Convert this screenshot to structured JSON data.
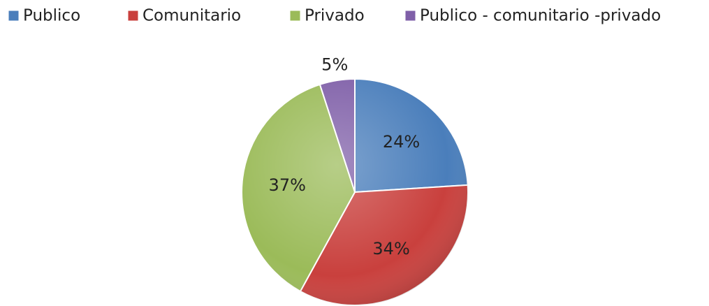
{
  "chart_data": {
    "type": "pie",
    "categories": [
      "Publico",
      "Comunitario",
      "Privado",
      "Publico - comunitario -privado"
    ],
    "values": [
      24,
      34,
      37,
      5
    ],
    "value_labels": [
      "24%",
      "34%",
      "37%",
      "5%"
    ],
    "colors": [
      "#4a7ebb",
      "#c9403d",
      "#9bbb59",
      "#7f5fa8"
    ],
    "legend": "top"
  }
}
